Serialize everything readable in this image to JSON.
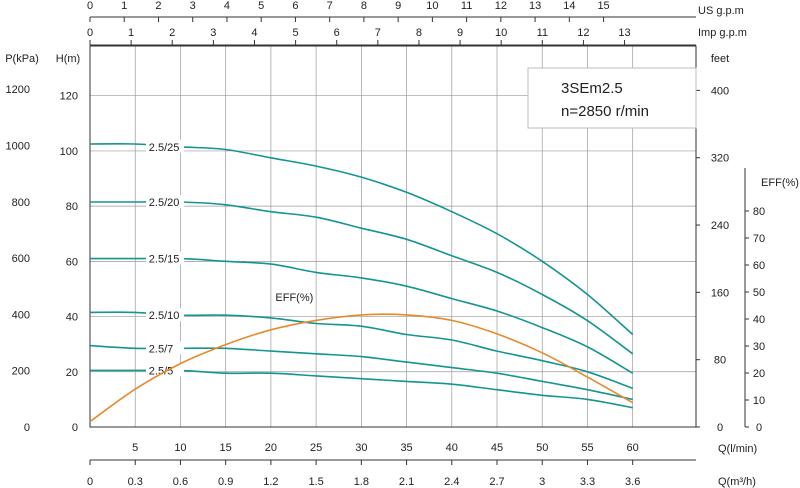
{
  "chart_data": {
    "type": "line",
    "title": "3SEm2.5",
    "subtitle": "n=2850 r/min",
    "flow_lpm_ticks": [
      5,
      10,
      15,
      20,
      25,
      30,
      35,
      40,
      45,
      50,
      55,
      60
    ],
    "flow_lpm_label": "Q(l/min)",
    "flow_m3h_ticks": [
      "0",
      "0.3",
      "0.6",
      "0.9",
      "1.2",
      "1.5",
      "1.8",
      "2.1",
      "2.4",
      "2.7",
      "3",
      "3.3",
      "3.6"
    ],
    "flow_m3h_label": "Q(m³/h)",
    "us_gpm_ticks": [
      0,
      1,
      2,
      3,
      4,
      5,
      6,
      7,
      8,
      9,
      10,
      11,
      12,
      13,
      14,
      15
    ],
    "us_gpm_label": "US  g.p.m",
    "imp_gpm_ticks": [
      0,
      1,
      2,
      3,
      4,
      5,
      6,
      7,
      8,
      9,
      10,
      11,
      12,
      13
    ],
    "imp_gpm_label": "Imp  g.p.m",
    "head_m_label": "H(m)",
    "head_m_ticks": [
      0,
      20,
      40,
      60,
      80,
      100,
      120
    ],
    "pressure_label": "P(kPa)",
    "pressure_ticks": [
      0,
      200,
      400,
      600,
      800,
      1000,
      1200
    ],
    "feet_label": "feet",
    "feet_ticks": [
      0,
      80,
      160,
      240,
      320,
      400
    ],
    "eff_label": "EFF(%)",
    "eff_ticks": [
      0,
      10,
      20,
      30,
      40,
      50,
      60,
      70,
      80
    ],
    "xlim_lpm": [
      0,
      67
    ],
    "ylim_m": [
      0,
      138
    ],
    "series": [
      {
        "name": "2.5/25",
        "x": [
          0,
          5,
          10,
          15,
          20,
          25,
          30,
          35,
          40,
          45,
          50,
          55,
          60
        ],
        "y": [
          102.5,
          102.5,
          101.5,
          100.5,
          97.5,
          94.5,
          90.5,
          85,
          78,
          70,
          60,
          48,
          33.5
        ]
      },
      {
        "name": "2.5/20",
        "x": [
          0,
          5,
          10,
          15,
          20,
          25,
          30,
          35,
          40,
          45,
          50,
          55,
          60
        ],
        "y": [
          81.5,
          81.5,
          81.5,
          80.5,
          78,
          76,
          72,
          68,
          62,
          56,
          48,
          38.5,
          26.5
        ]
      },
      {
        "name": "2.5/15",
        "x": [
          0,
          5,
          10,
          15,
          20,
          25,
          30,
          35,
          40,
          45,
          50,
          55,
          60
        ],
        "y": [
          61,
          61,
          61,
          60,
          59,
          56,
          54,
          51,
          46.5,
          42,
          36,
          29,
          19.5
        ]
      },
      {
        "name": "2.5/10",
        "x": [
          0,
          5,
          10,
          15,
          20,
          25,
          30,
          35,
          40,
          45,
          50,
          55,
          60
        ],
        "y": [
          41.5,
          41.5,
          40.5,
          40.5,
          39.5,
          37.5,
          36.5,
          33.5,
          31.5,
          27.5,
          24,
          20,
          14
        ]
      },
      {
        "name": "2.5/7",
        "x": [
          0,
          5,
          10,
          15,
          20,
          25,
          30,
          35,
          40,
          45,
          50,
          55,
          60
        ],
        "y": [
          29.5,
          28.5,
          28.5,
          28.5,
          27.5,
          26.5,
          25.5,
          23.5,
          21.5,
          19.5,
          16.5,
          13.5,
          10
        ]
      },
      {
        "name": "2.5/5",
        "x": [
          0,
          5,
          10,
          15,
          20,
          25,
          30,
          35,
          40,
          45,
          50,
          55,
          60
        ],
        "y": [
          20.5,
          20.5,
          20.5,
          19.5,
          19.5,
          18.5,
          17.5,
          16.5,
          15.5,
          13.5,
          11.5,
          10,
          7
        ]
      }
    ],
    "efficiency": {
      "name": "EFF(%)",
      "x": [
        0,
        5,
        10,
        15,
        20,
        25,
        30,
        35,
        40,
        45,
        50,
        55,
        60
      ],
      "y": [
        2,
        14,
        23.5,
        30.5,
        36,
        39.5,
        41.5,
        41.5,
        39.5,
        34.5,
        27.5,
        18.5,
        9
      ]
    },
    "colors": {
      "head": "#14958f",
      "efficiency": "#e8892c",
      "grid": "#9a9a9a",
      "axis": "#333333"
    }
  }
}
